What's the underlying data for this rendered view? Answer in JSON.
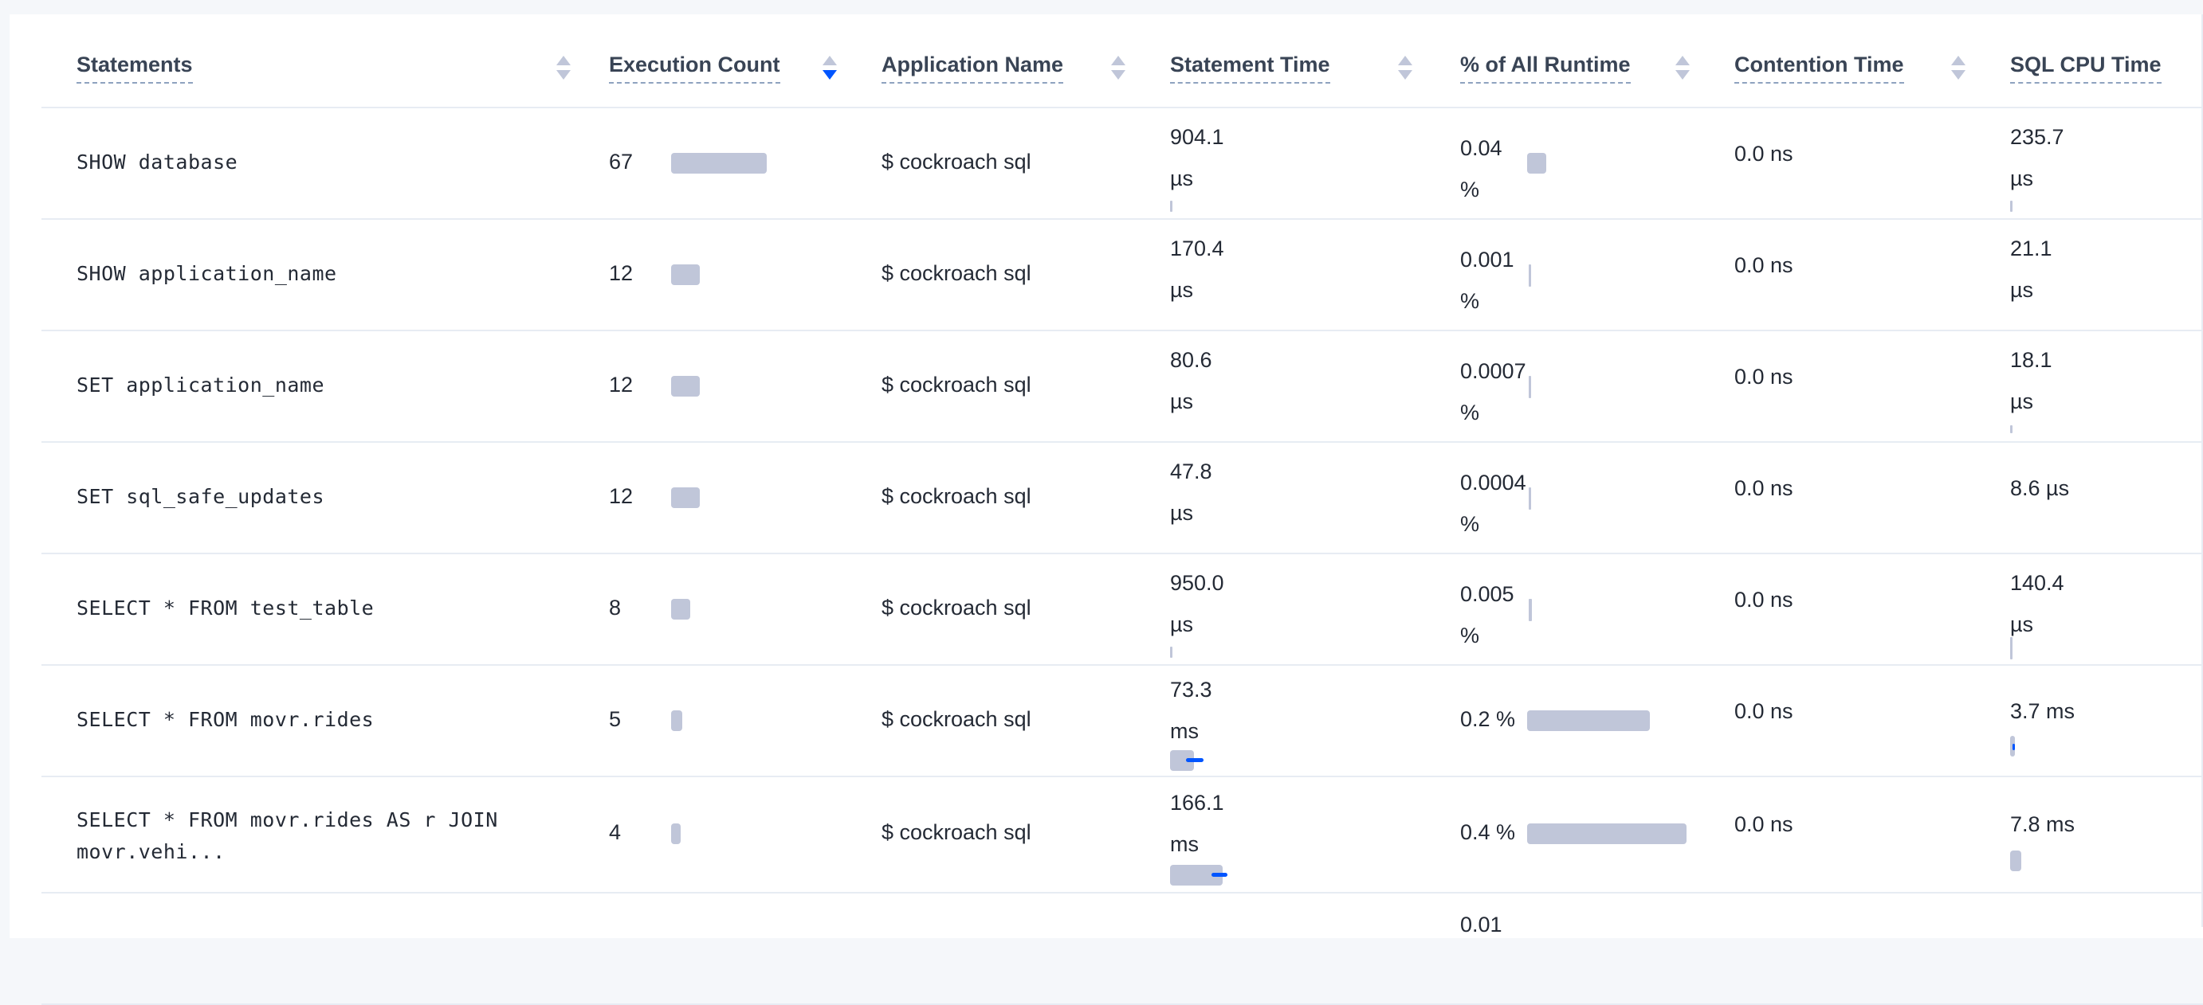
{
  "columns": [
    {
      "label": "Statements",
      "sort": "none"
    },
    {
      "label": "Execution Count",
      "sort": "desc"
    },
    {
      "label": "Application Name",
      "sort": "none"
    },
    {
      "label": "Statement Time",
      "sort": "none"
    },
    {
      "label": "% of All Runtime",
      "sort": "none"
    },
    {
      "label": "Contention Time",
      "sort": "none"
    },
    {
      "label": "SQL CPU Time",
      "sort": "none"
    }
  ],
  "rows": [
    {
      "statement": [
        "SHOW database"
      ],
      "exec_count": "67",
      "exec_fraction": 1.0,
      "app": "$ cockroach sql",
      "stmt_time": [
        "904.1",
        "µs"
      ],
      "runtime_pct": [
        "0.04",
        "%"
      ],
      "contention": "0.0 ns",
      "cpu": [
        "235.7",
        "µs"
      ]
    },
    {
      "statement": [
        "SHOW application_name"
      ],
      "exec_count": "12",
      "exec_fraction": 0.18,
      "app": "$ cockroach sql",
      "stmt_time": [
        "170.4",
        "µs"
      ],
      "runtime_pct": [
        "0.001",
        "%"
      ],
      "contention": "0.0 ns",
      "cpu": [
        "21.1",
        "µs"
      ]
    },
    {
      "statement": [
        "SET application_name"
      ],
      "exec_count": "12",
      "exec_fraction": 0.18,
      "app": "$ cockroach sql",
      "stmt_time": [
        "80.6",
        "µs"
      ],
      "runtime_pct": [
        "0.0007",
        "%"
      ],
      "contention": "0.0 ns",
      "cpu": [
        "18.1",
        "µs"
      ]
    },
    {
      "statement": [
        "SET sql_safe_updates"
      ],
      "exec_count": "12",
      "exec_fraction": 0.18,
      "app": "$ cockroach sql",
      "stmt_time": [
        "47.8",
        "µs"
      ],
      "runtime_pct": [
        "0.0004",
        "%"
      ],
      "contention": "0.0 ns",
      "cpu": [
        "8.6 µs"
      ]
    },
    {
      "statement": [
        "SELECT * FROM test_table"
      ],
      "exec_count": "8",
      "exec_fraction": 0.12,
      "app": "$ cockroach sql",
      "stmt_time": [
        "950.0",
        "µs"
      ],
      "runtime_pct": [
        "0.005",
        "%"
      ],
      "contention": "0.0 ns",
      "cpu": [
        "140.4",
        "µs"
      ]
    },
    {
      "statement": [
        "SELECT * FROM movr.rides"
      ],
      "exec_count": "5",
      "exec_fraction": 0.07,
      "app": "$ cockroach sql",
      "stmt_time": [
        "73.3",
        "ms"
      ],
      "runtime_pct": [
        "0.2 %"
      ],
      "contention": "0.0 ns",
      "cpu": [
        "3.7 ms"
      ]
    },
    {
      "statement": [
        "SELECT * FROM movr.rides AS r JOIN",
        "movr.vehi..."
      ],
      "exec_count": "4",
      "exec_fraction": 0.06,
      "app": "$ cockroach sql",
      "stmt_time": [
        "166.1",
        "ms"
      ],
      "runtime_pct": [
        "0.4 %"
      ],
      "contention": "0.0 ns",
      "cpu": [
        "7.8 ms"
      ]
    },
    {
      "statement": [
        ""
      ],
      "exec_count": "",
      "exec_fraction": 0,
      "app": "",
      "stmt_time": [
        ""
      ],
      "runtime_pct": [
        "0.01"
      ],
      "contention": "",
      "cpu": [
        ""
      ]
    }
  ]
}
